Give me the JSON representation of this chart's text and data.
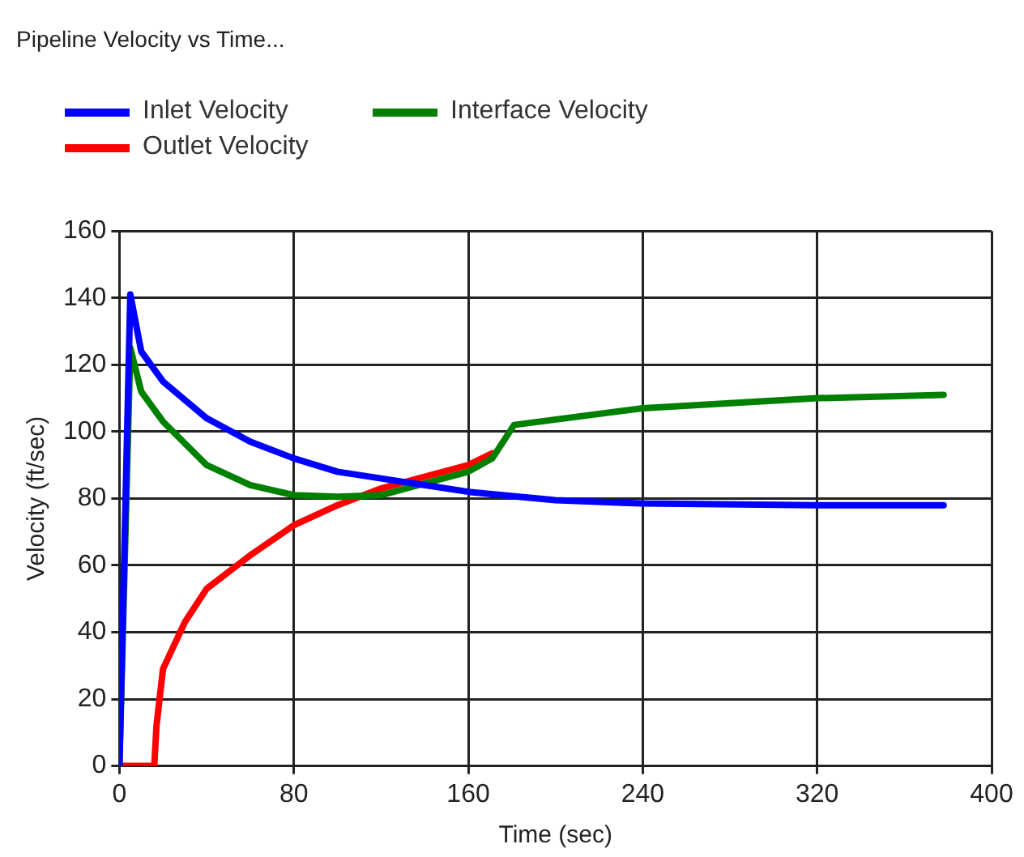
{
  "chart_data": {
    "type": "line",
    "title": "Pipeline Velocity vs Time...",
    "xlabel": "Time (sec)",
    "ylabel": "Velocity (ft/sec)",
    "xlim": [
      0,
      400
    ],
    "xticks": [
      0,
      80,
      160,
      240,
      320,
      400
    ],
    "ylim": [
      0,
      160
    ],
    "yticks": [
      0,
      20,
      40,
      60,
      80,
      100,
      120,
      140,
      160
    ],
    "grid": true,
    "legend": "top left",
    "marker": "none",
    "line_style": "solid",
    "series": [
      {
        "name": "Inlet Velocity",
        "color": "#0000ff",
        "x": [
          0,
          5,
          10,
          20,
          40,
          60,
          80,
          100,
          120,
          160,
          200,
          240,
          320,
          378
        ],
        "values": [
          0,
          141,
          124,
          115,
          104,
          97,
          92,
          88,
          86,
          82,
          79.5,
          78.5,
          78,
          78
        ]
      },
      {
        "name": "Interface Velocity",
        "color": "#008000",
        "x": [
          0,
          5,
          10,
          20,
          40,
          60,
          80,
          100,
          120,
          160,
          171,
          181,
          240,
          320,
          378
        ],
        "values": [
          0,
          125,
          112,
          103,
          90,
          84,
          81,
          80.5,
          81,
          88,
          92,
          102,
          107,
          110,
          111
        ]
      },
      {
        "name": "Outlet Velocity",
        "color": "#ff0000",
        "x": [
          0,
          16,
          17,
          20,
          30,
          40,
          60,
          80,
          100,
          120,
          160,
          171
        ],
        "values": [
          0,
          0,
          12,
          29,
          43,
          53,
          63,
          72,
          78,
          83,
          90,
          93.5
        ]
      }
    ]
  }
}
